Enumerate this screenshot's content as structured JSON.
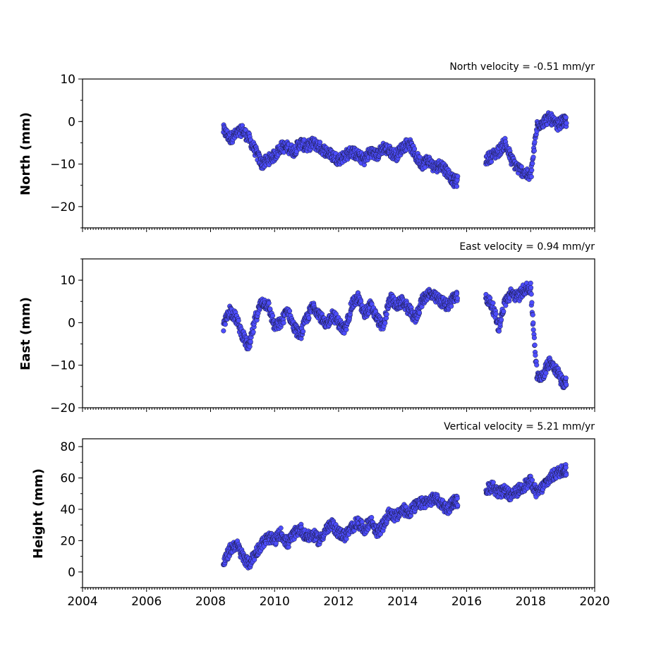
{
  "chart_data": [
    {
      "type": "scatter",
      "title": "North velocity = -0.51 mm/yr",
      "xlabel": "",
      "ylabel": "North (mm)",
      "xlim": [
        2004,
        2020
      ],
      "ylim": [
        -25,
        10
      ],
      "yticks": [
        10,
        0,
        -10,
        -20
      ],
      "ytick_labels": [
        "10",
        "0",
        "−10",
        "−20"
      ],
      "marker_color": "#4d4dff",
      "series": [
        {
          "x": [
            2008.4,
            2008.6,
            2008.8,
            2009.0,
            2009.2,
            2009.4,
            2009.6,
            2009.8,
            2010.0,
            2010.2,
            2010.4,
            2010.6,
            2010.8,
            2011.0,
            2011.2,
            2011.4,
            2011.6,
            2011.8,
            2012.0,
            2012.2,
            2012.4,
            2012.6,
            2012.8,
            2013.0,
            2013.2,
            2013.4,
            2013.6,
            2013.8,
            2014.0,
            2014.2,
            2014.4,
            2014.6,
            2014.8,
            2015.0,
            2015.2,
            2015.4,
            2015.6,
            2016.6,
            2016.8,
            2017.0,
            2017.2,
            2017.4,
            2017.6,
            2017.8,
            2018.0,
            2018.2,
            2018.4,
            2018.6,
            2018.8,
            2019.0
          ],
          "y": [
            -2,
            -4,
            -3,
            -2,
            -4,
            -7,
            -10,
            -9,
            -8,
            -6,
            -6,
            -7,
            -5,
            -6,
            -5,
            -6,
            -7,
            -8,
            -9,
            -8,
            -7,
            -8,
            -9,
            -7,
            -8,
            -6,
            -7,
            -8,
            -6,
            -5,
            -8,
            -10,
            -9,
            -11,
            -10,
            -12,
            -14,
            -9,
            -8,
            -7,
            -5,
            -9,
            -11,
            -12,
            -13,
            -1,
            0,
            1,
            -1,
            0
          ]
        }
      ]
    },
    {
      "type": "scatter",
      "title": "East velocity = 0.94 mm/yr",
      "xlabel": "",
      "ylabel": "East (mm)",
      "xlim": [
        2004,
        2020
      ],
      "ylim": [
        -20,
        15
      ],
      "yticks": [
        10,
        0,
        -10,
        -20
      ],
      "ytick_labels": [
        "10",
        "0",
        "−10",
        "−20"
      ],
      "marker_color": "#4d4dff",
      "series": [
        {
          "x": [
            2008.4,
            2008.6,
            2008.8,
            2009.0,
            2009.2,
            2009.4,
            2009.6,
            2009.8,
            2010.0,
            2010.2,
            2010.4,
            2010.6,
            2010.8,
            2011.0,
            2011.2,
            2011.4,
            2011.6,
            2011.8,
            2012.0,
            2012.2,
            2012.4,
            2012.6,
            2012.8,
            2013.0,
            2013.2,
            2013.4,
            2013.6,
            2013.8,
            2014.0,
            2014.2,
            2014.4,
            2014.6,
            2014.8,
            2015.0,
            2015.2,
            2015.4,
            2015.6,
            2016.6,
            2016.8,
            2017.0,
            2017.2,
            2017.4,
            2017.6,
            2017.8,
            2018.0,
            2018.2,
            2018.4,
            2018.6,
            2018.8,
            2019.0
          ],
          "y": [
            -1,
            3,
            1,
            -3,
            -6,
            1,
            5,
            4,
            -1,
            0,
            3,
            -1,
            -3,
            1,
            4,
            2,
            -1,
            2,
            0,
            -2,
            4,
            6,
            2,
            4,
            1,
            -1,
            6,
            4,
            5,
            3,
            1,
            5,
            7,
            6,
            5,
            4,
            6,
            6,
            4,
            -1,
            5,
            7,
            6,
            8,
            8,
            -13,
            -12,
            -9,
            -11,
            -14
          ]
        }
      ]
    },
    {
      "type": "scatter",
      "title": "Vertical velocity = 5.21 mm/yr",
      "xlabel": "",
      "ylabel": "Height (mm)",
      "xlim": [
        2004,
        2020
      ],
      "ylim": [
        -10,
        85
      ],
      "yticks": [
        80,
        60,
        40,
        20,
        0
      ],
      "ytick_labels": [
        "80",
        "60",
        "40",
        "20",
        "0"
      ],
      "xticks": [
        2004,
        2006,
        2008,
        2010,
        2012,
        2014,
        2016,
        2018,
        2020
      ],
      "xtick_labels": [
        "2004",
        "2006",
        "2008",
        "2010",
        "2012",
        "2014",
        "2016",
        "2018",
        "2020"
      ],
      "marker_color": "#4d4dff",
      "series": [
        {
          "x": [
            2008.4,
            2008.6,
            2008.8,
            2009.0,
            2009.2,
            2009.4,
            2009.6,
            2009.8,
            2010.0,
            2010.2,
            2010.4,
            2010.6,
            2010.8,
            2011.0,
            2011.2,
            2011.4,
            2011.6,
            2011.8,
            2012.0,
            2012.2,
            2012.4,
            2012.6,
            2012.8,
            2013.0,
            2013.2,
            2013.4,
            2013.6,
            2013.8,
            2014.0,
            2014.2,
            2014.4,
            2014.6,
            2014.8,
            2015.0,
            2015.2,
            2015.4,
            2015.6,
            2016.6,
            2016.8,
            2017.0,
            2017.2,
            2017.4,
            2017.6,
            2017.8,
            2018.0,
            2018.2,
            2018.4,
            2018.6,
            2018.8,
            2019.0
          ],
          "y": [
            5,
            14,
            18,
            10,
            5,
            12,
            18,
            22,
            20,
            25,
            18,
            24,
            28,
            22,
            24,
            20,
            27,
            30,
            25,
            23,
            28,
            32,
            27,
            33,
            25,
            30,
            38,
            35,
            40,
            38,
            42,
            44,
            45,
            47,
            44,
            40,
            45,
            52,
            55,
            50,
            52,
            48,
            52,
            55,
            58,
            50,
            55,
            60,
            63,
            65
          ]
        }
      ]
    }
  ]
}
